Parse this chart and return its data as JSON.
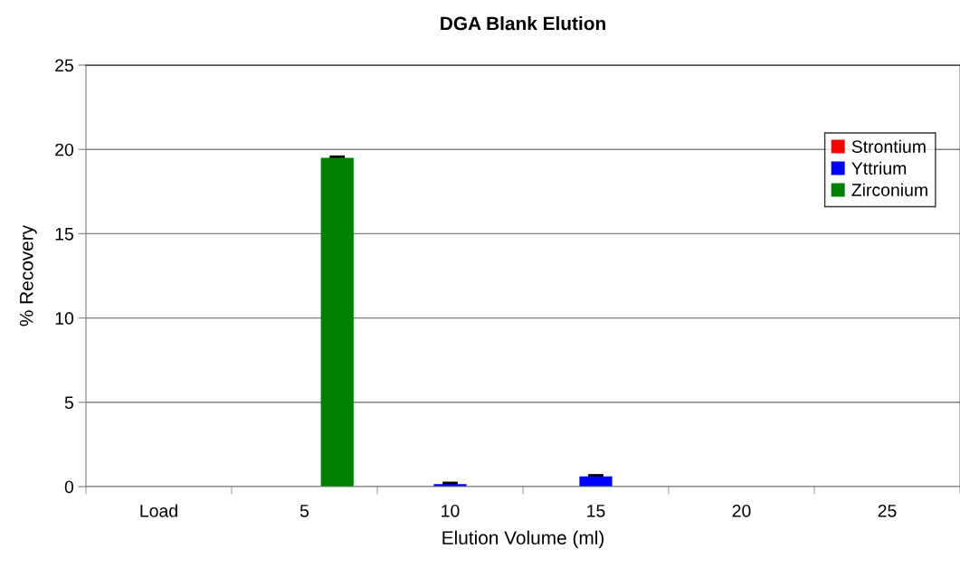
{
  "chart_data": {
    "type": "bar",
    "title": "DGA Blank Elution",
    "xlabel": "Elution Volume (ml)",
    "ylabel": "% Recovery",
    "categories": [
      "Load",
      "5",
      "10",
      "15",
      "20",
      "25"
    ],
    "series": [
      {
        "name": "Strontium",
        "color": "#ff0000",
        "values": [
          0,
          0,
          0,
          0,
          0,
          0
        ]
      },
      {
        "name": "Yttrium",
        "color": "#0000ff",
        "values": [
          0,
          0,
          0.15,
          0.6,
          0,
          0
        ],
        "errors": [
          null,
          null,
          0.05,
          0.05,
          null,
          null
        ]
      },
      {
        "name": "Zirconium",
        "color": "#008000",
        "values": [
          0,
          19.5,
          0,
          0,
          0,
          0
        ],
        "errors": [
          null,
          0.05,
          null,
          null,
          null,
          null
        ]
      }
    ],
    "ylim": [
      0,
      25
    ],
    "yticks": [
      0,
      5,
      10,
      15,
      20,
      25
    ],
    "grid": "y",
    "legend": "top right"
  }
}
